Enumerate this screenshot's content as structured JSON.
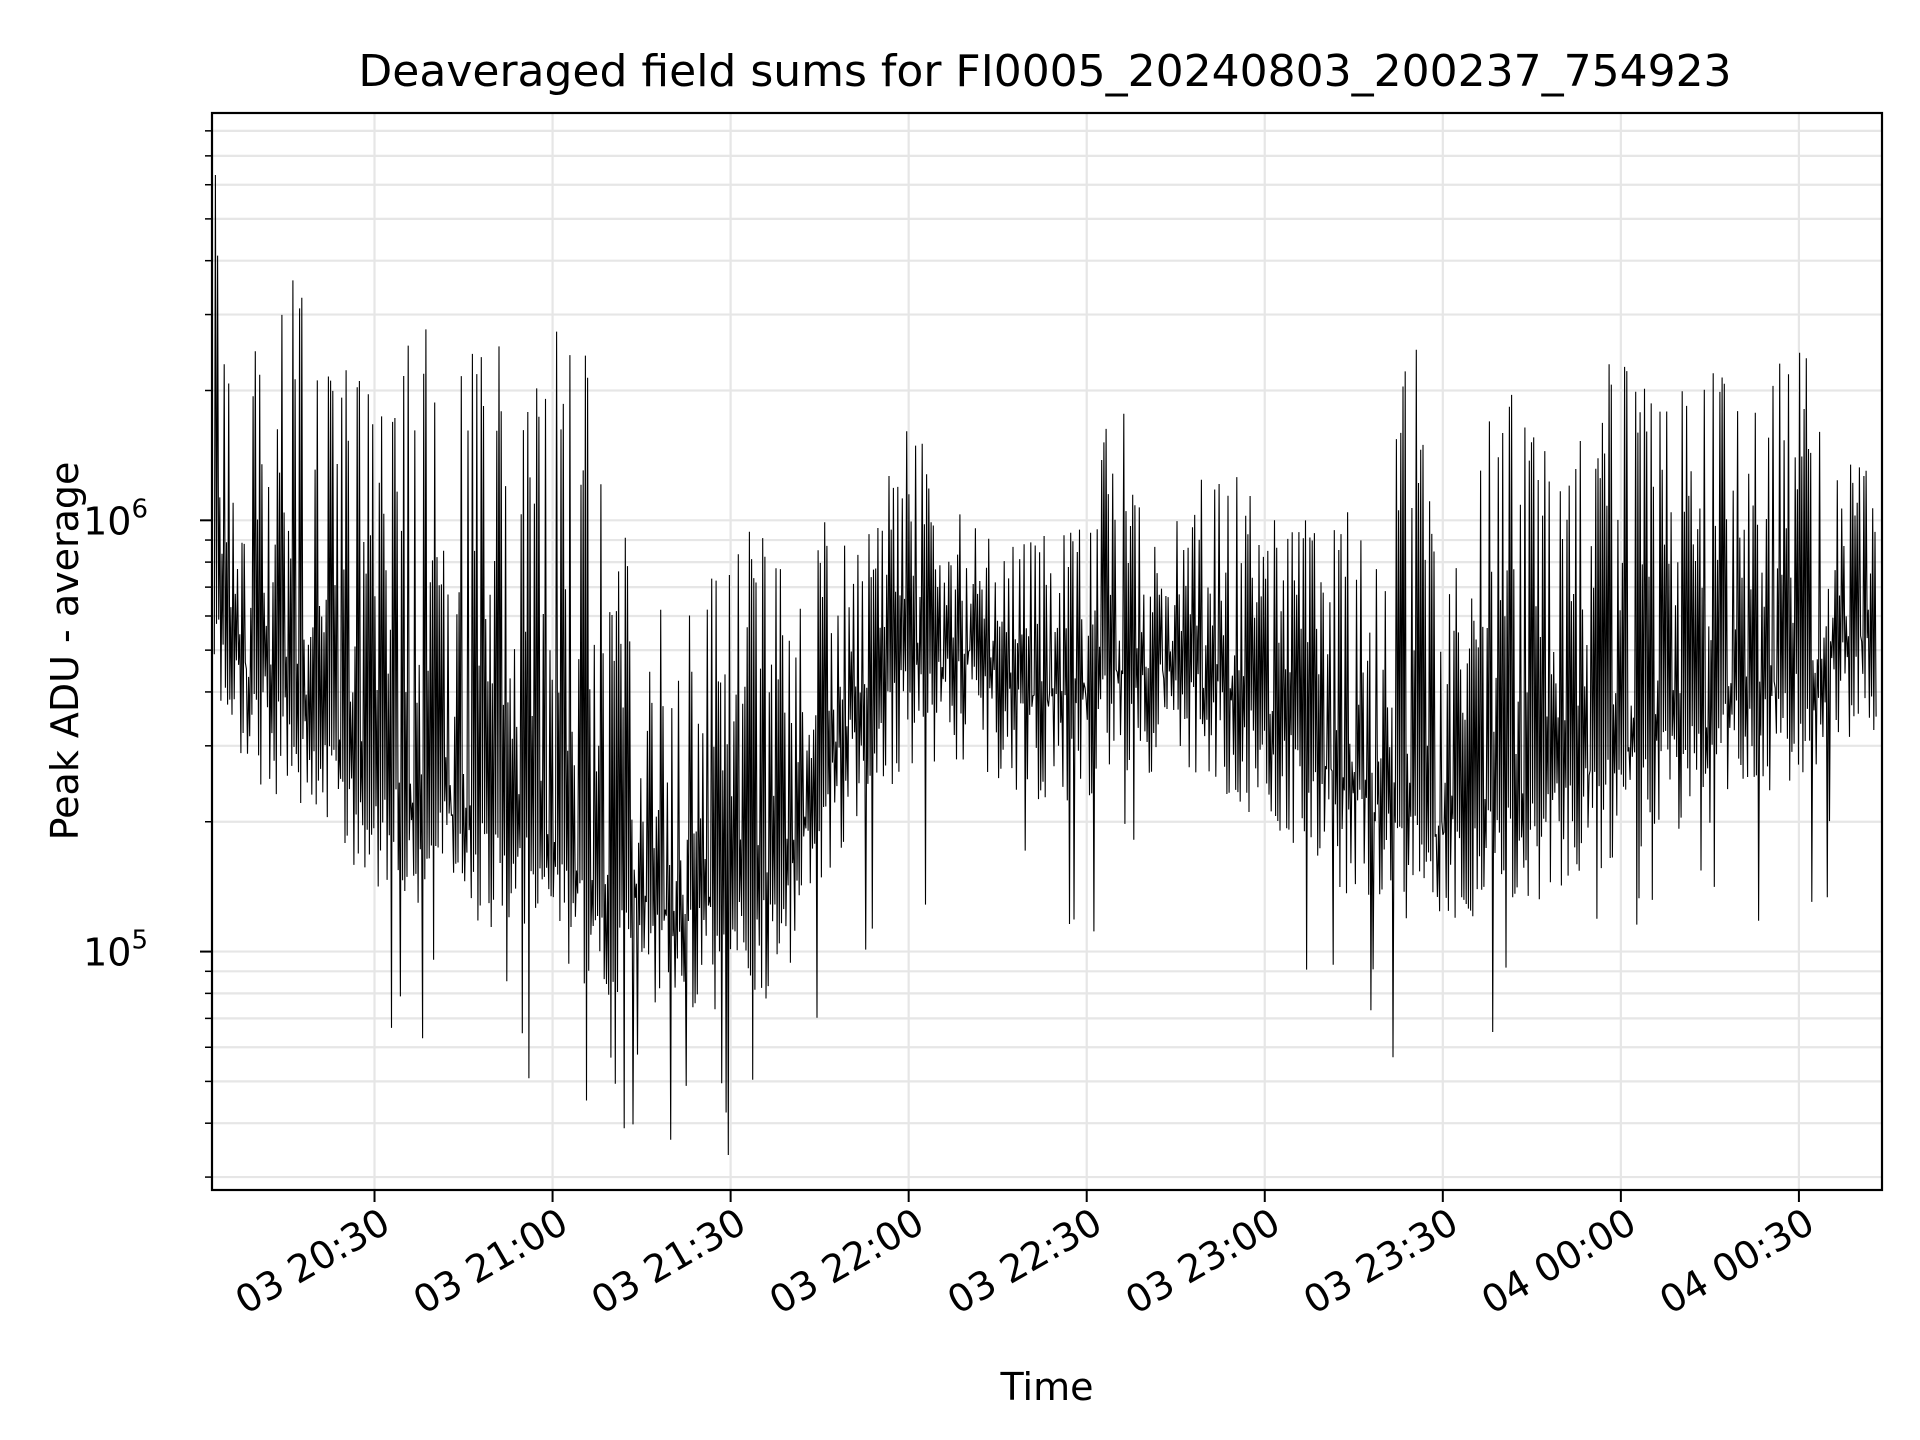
{
  "chart_data": {
    "type": "line",
    "title": "Deaveraged field sums for FI0005_20240803_200237_754923",
    "xlabel": "Time",
    "ylabel": "Peak ADU - average",
    "y_scale": "log",
    "ylim": [
      28000,
      8800000
    ],
    "xlim": [
      "2024-08-03 20:02:37",
      "2024-08-04 00:44:00"
    ],
    "grid": true,
    "line_color": "#000000",
    "grid_color": "#e6e6e6",
    "x_ticks": [
      {
        "t": "2024-08-03 20:30",
        "label": "03 20:30"
      },
      {
        "t": "2024-08-03 21:00",
        "label": "03 21:00"
      },
      {
        "t": "2024-08-03 21:30",
        "label": "03 21:30"
      },
      {
        "t": "2024-08-03 22:00",
        "label": "03 22:00"
      },
      {
        "t": "2024-08-03 22:30",
        "label": "03 22:30"
      },
      {
        "t": "2024-08-03 23:00",
        "label": "03 23:00"
      },
      {
        "t": "2024-08-03 23:30",
        "label": "03 23:30"
      },
      {
        "t": "2024-08-04 00:00",
        "label": "04 00:00"
      },
      {
        "t": "2024-08-04 00:30",
        "label": "04 00:30"
      }
    ],
    "y_ticks": [
      {
        "value": 100000,
        "base": "10",
        "exp": "5"
      },
      {
        "value": 1000000,
        "base": "10",
        "exp": "6"
      }
    ],
    "series": [
      {
        "x": [
          "2024-08-03 20:03",
          "2024-08-03 20:05",
          "2024-08-03 20:08",
          "2024-08-03 20:11",
          "2024-08-03 20:14",
          "2024-08-03 20:17",
          "2024-08-03 20:20",
          "2024-08-03 20:24",
          "2024-08-03 20:28",
          "2024-08-03 20:32",
          "2024-08-03 20:36",
          "2024-08-03 20:40",
          "2024-08-03 20:45",
          "2024-08-03 20:50",
          "2024-08-03 20:55",
          "2024-08-03 21:00",
          "2024-08-03 21:05",
          "2024-08-03 21:10",
          "2024-08-03 21:15",
          "2024-08-03 21:20",
          "2024-08-03 21:25",
          "2024-08-03 21:30",
          "2024-08-03 21:35",
          "2024-08-03 21:40",
          "2024-08-03 21:45",
          "2024-08-03 21:50",
          "2024-08-03 21:55",
          "2024-08-03 22:00",
          "2024-08-03 22:05",
          "2024-08-03 22:10",
          "2024-08-03 22:15",
          "2024-08-03 22:20",
          "2024-08-03 22:25",
          "2024-08-03 22:30",
          "2024-08-03 22:35",
          "2024-08-03 22:40",
          "2024-08-03 22:45",
          "2024-08-03 22:50",
          "2024-08-03 22:55",
          "2024-08-03 23:00",
          "2024-08-03 23:05",
          "2024-08-03 23:10",
          "2024-08-03 23:15",
          "2024-08-03 23:20",
          "2024-08-03 23:25",
          "2024-08-03 23:30",
          "2024-08-03 23:35",
          "2024-08-03 23:40",
          "2024-08-03 23:45",
          "2024-08-03 23:50",
          "2024-08-03 23:55",
          "2024-08-04 00:00",
          "2024-08-04 00:05",
          "2024-08-04 00:10",
          "2024-08-04 00:15",
          "2024-08-04 00:20",
          "2024-08-04 00:25",
          "2024-08-04 00:30",
          "2024-08-04 00:35",
          "2024-08-04 00:40",
          "2024-08-04 00:43"
        ],
        "base": [
          650000,
          480000,
          440000,
          400000,
          380000,
          340000,
          300000,
          260000,
          240000,
          220000,
          215000,
          210000,
          200000,
          185000,
          170000,
          155000,
          140000,
          130000,
          125000,
          120000,
          118000,
          120000,
          125000,
          150000,
          220000,
          320000,
          380000,
          420000,
          450000,
          460000,
          420000,
          380000,
          360000,
          380000,
          420000,
          430000,
          420000,
          400000,
          370000,
          330000,
          290000,
          250000,
          220000,
          200000,
          190000,
          185000,
          190000,
          200000,
          210000,
          230000,
          250000,
          270000,
          290000,
          310000,
          330000,
          360000,
          390000,
          420000,
          460000,
          500000,
          520000
        ],
        "peak": [
          7000000,
          2600000,
          2500000,
          2600000,
          3000000,
          3400000,
          2500000,
          2100000,
          2000000,
          1500000,
          2500000,
          2600000,
          2600000,
          2500000,
          2100000,
          2500000,
          2700000,
          1200000,
          700000,
          650000,
          640000,
          900000,
          860000,
          850000,
          920000,
          900000,
          900000,
          1900000,
          950000,
          950000,
          1000000,
          960000,
          940000,
          1000000,
          2200000,
          900000,
          950000,
          1200000,
          1300000,
          950000,
          940000,
          1000000,
          940000,
          900000,
          3000000,
          500000,
          1400000,
          2100000,
          1500000,
          1200000,
          1700000,
          2600000,
          1700000,
          2100000,
          2100000,
          2300000,
          2400000,
          2500000,
          1600000,
          1500000,
          1400000
        ]
      }
    ]
  }
}
